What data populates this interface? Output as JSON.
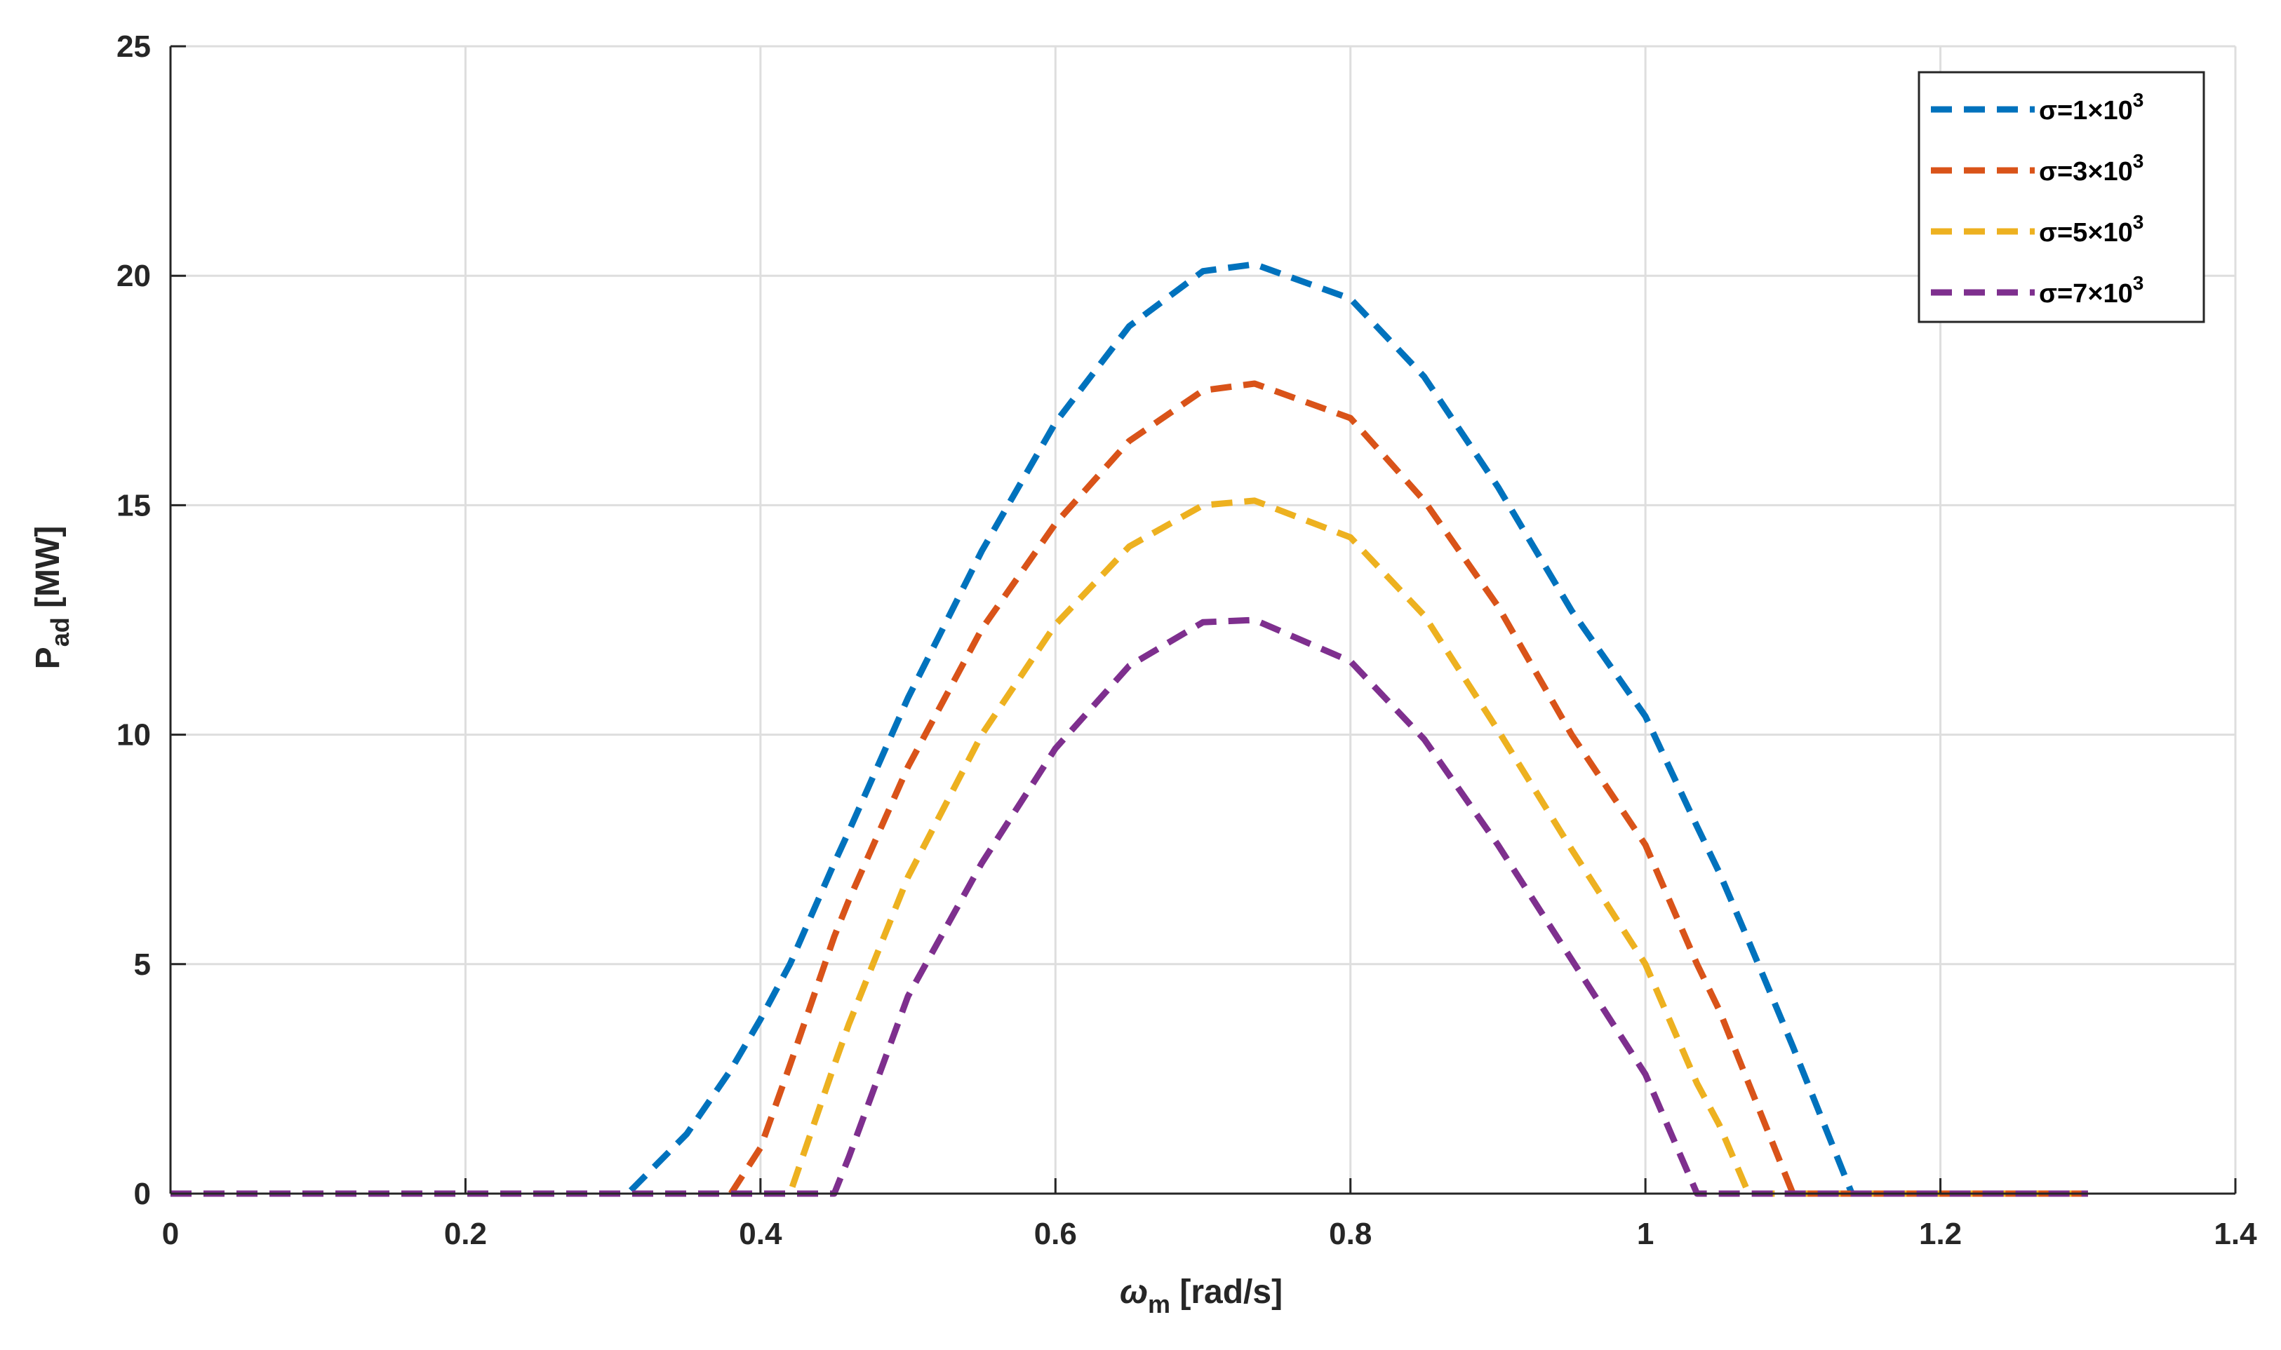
{
  "chart_data": {
    "type": "line",
    "title": "",
    "xlabel": {
      "main": "ω",
      "sub": "m",
      "unit": " [rad/s]"
    },
    "ylabel": {
      "main": "P",
      "sub": "ad",
      "unit": " [MW]"
    },
    "xlim": [
      0,
      1.4
    ],
    "ylim": [
      0,
      25
    ],
    "xticks": [
      0,
      0.2,
      0.4,
      0.6,
      0.8,
      1,
      1.2,
      1.4
    ],
    "xtick_labels": [
      "0",
      "0.2",
      "0.4",
      "0.6",
      "0.8",
      "1",
      "1.2",
      "1.4"
    ],
    "yticks": [
      0,
      5,
      10,
      15,
      20,
      25
    ],
    "ytick_labels": [
      "0",
      "5",
      "10",
      "15",
      "20",
      "25"
    ],
    "grid": true,
    "legend_position": "top-right",
    "line_style": "dashed",
    "x": [
      0,
      0.1,
      0.2,
      0.3,
      0.31,
      0.35,
      0.38,
      0.4,
      0.42,
      0.45,
      0.46,
      0.5,
      0.55,
      0.6,
      0.65,
      0.7,
      0.735,
      0.8,
      0.85,
      0.9,
      0.95,
      1.0,
      1.035,
      1.05,
      1.07,
      1.1,
      1.14,
      1.2,
      1.3
    ],
    "series": [
      {
        "name": "σ=1×10³",
        "legend_main": "σ=1×10",
        "legend_sup": "3",
        "color": "#0072BD",
        "values": [
          0,
          0,
          0,
          0,
          0,
          1.3,
          2.7,
          3.8,
          5.0,
          7.2,
          7.9,
          10.8,
          14.0,
          16.8,
          18.9,
          20.1,
          20.25,
          19.5,
          17.8,
          15.4,
          12.7,
          10.4,
          8.0,
          7.0,
          5.5,
          3.2,
          0,
          0,
          0
        ]
      },
      {
        "name": "σ=3×10³",
        "legend_main": "σ=3×10",
        "legend_sup": "3",
        "color": "#D95319",
        "values": [
          0,
          0,
          0,
          0,
          0,
          0,
          0,
          1.0,
          2.8,
          5.6,
          6.4,
          9.3,
          12.3,
          14.6,
          16.4,
          17.5,
          17.65,
          16.9,
          15.1,
          12.8,
          10.0,
          7.6,
          5.0,
          4.0,
          2.4,
          0,
          0,
          0,
          0
        ]
      },
      {
        "name": "σ=5×10³",
        "legend_main": "σ=5×10",
        "legend_sup": "3",
        "color": "#EDB120",
        "values": [
          0,
          0,
          0,
          0,
          0,
          0,
          0,
          0,
          0,
          2.8,
          3.7,
          6.9,
          10.0,
          12.4,
          14.1,
          15.0,
          15.1,
          14.3,
          12.6,
          10.1,
          7.5,
          5.0,
          2.4,
          1.5,
          0,
          0,
          0,
          0,
          0
        ]
      },
      {
        "name": "σ=7×10³",
        "legend_main": "σ=7×10",
        "legend_sup": "3",
        "color": "#7E2F8E",
        "values": [
          0,
          0,
          0,
          0,
          0,
          0,
          0,
          0,
          0,
          0,
          0.8,
          4.3,
          7.2,
          9.7,
          11.5,
          12.45,
          12.5,
          11.6,
          9.9,
          7.6,
          5.1,
          2.6,
          0,
          0,
          0,
          0,
          0,
          0,
          0
        ]
      }
    ]
  }
}
